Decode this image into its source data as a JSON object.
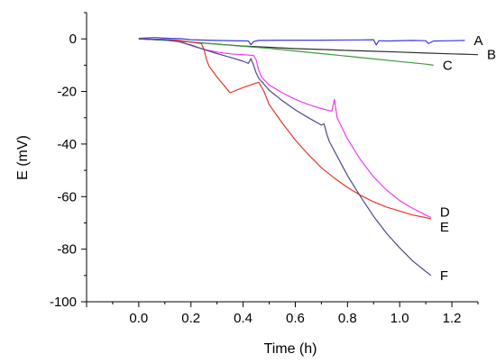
{
  "chart_data": {
    "type": "line",
    "xlabel": "Time (h)",
    "ylabel": "E (mV)",
    "xlim": [
      -0.2,
      1.3
    ],
    "ylim": [
      -100,
      10
    ],
    "xticks": [
      0.0,
      0.2,
      0.4,
      0.6,
      0.8,
      1.0,
      1.2
    ],
    "xtick_labels": [
      "0.0",
      "0.2",
      "0.4",
      "0.6",
      "0.8",
      "1.0",
      "1.2"
    ],
    "yticks": [
      0,
      -20,
      -40,
      -60,
      -80,
      -100
    ],
    "ytick_labels": [
      "0",
      "-20",
      "-40",
      "-60",
      "-80",
      "-100"
    ],
    "grid": false,
    "series": [
      {
        "name": "A",
        "color": "#3a3ae6",
        "x": [
          0.0,
          0.06,
          0.12,
          0.16,
          0.2,
          0.3,
          0.42,
          0.43,
          0.44,
          0.46,
          0.55,
          0.7,
          0.85,
          0.9,
          0.91,
          0.92,
          0.95,
          1.05,
          1.1,
          1.11,
          1.13,
          1.2,
          1.25
        ],
        "y": [
          0.2,
          0.5,
          0.2,
          0.1,
          -0.3,
          -0.6,
          -0.8,
          -2.2,
          -1.0,
          -0.6,
          -0.5,
          -0.5,
          -0.4,
          -0.3,
          -2.3,
          -0.7,
          -0.8,
          -0.6,
          -0.7,
          -1.8,
          -0.8,
          -0.7,
          -0.6
        ]
      },
      {
        "name": "B",
        "color": "#2f2f2f",
        "x": [
          0.0,
          0.1,
          0.2,
          0.3,
          0.4,
          0.5,
          0.6,
          0.7,
          0.8,
          0.9,
          1.0,
          1.1,
          1.2,
          1.3
        ],
        "y": [
          0.0,
          -0.5,
          -1.2,
          -2.0,
          -2.7,
          -3.2,
          -3.7,
          -4.0,
          -4.4,
          -4.7,
          -5.0,
          -5.4,
          -5.7,
          -6.0
        ]
      },
      {
        "name": "C",
        "color": "#3c9b3c",
        "x": [
          0.0,
          0.1,
          0.2,
          0.3,
          0.4,
          0.5,
          0.6,
          0.7,
          0.8,
          0.9,
          1.0,
          1.1,
          1.13
        ],
        "y": [
          0.0,
          -0.5,
          -1.2,
          -2.0,
          -2.8,
          -3.6,
          -4.6,
          -5.6,
          -6.6,
          -7.6,
          -8.6,
          -9.6,
          -10.0
        ]
      },
      {
        "name": "D",
        "color": "#ee3cee",
        "x": [
          0.0,
          0.1,
          0.15,
          0.2,
          0.25,
          0.3,
          0.35,
          0.4,
          0.44,
          0.45,
          0.46,
          0.47,
          0.5,
          0.55,
          0.6,
          0.65,
          0.7,
          0.73,
          0.74,
          0.75,
          0.76,
          0.8,
          0.85,
          0.9,
          0.95,
          1.0,
          1.05,
          1.1,
          1.12
        ],
        "y": [
          0.0,
          -0.2,
          -0.8,
          -2.5,
          -4.0,
          -5.0,
          -5.7,
          -6.0,
          -6.3,
          -8.0,
          -12.0,
          -14.5,
          -17.5,
          -20.5,
          -23.0,
          -25.0,
          -26.5,
          -27.3,
          -27.5,
          -23.0,
          -30.0,
          -38.0,
          -46.0,
          -52.5,
          -57.5,
          -61.5,
          -64.5,
          -67.0,
          -68.0
        ]
      },
      {
        "name": "E",
        "color": "#e8362a",
        "x": [
          0.0,
          0.1,
          0.15,
          0.2,
          0.24,
          0.25,
          0.26,
          0.27,
          0.3,
          0.35,
          0.4,
          0.45,
          0.46,
          0.48,
          0.5,
          0.55,
          0.6,
          0.65,
          0.7,
          0.75,
          0.8,
          0.85,
          0.9,
          0.95,
          1.0,
          1.05,
          1.1,
          1.12
        ],
        "y": [
          0.0,
          -0.2,
          -0.5,
          -1.2,
          -1.8,
          -4.0,
          -8.0,
          -10.5,
          -14.5,
          -20.5,
          -18.5,
          -16.8,
          -16.5,
          -20.0,
          -25.0,
          -32.0,
          -38.5,
          -44.0,
          -49.0,
          -53.0,
          -56.5,
          -59.5,
          -62.0,
          -64.0,
          -65.5,
          -67.0,
          -68.0,
          -68.5
        ]
      },
      {
        "name": "F",
        "color": "#4a4a8a",
        "x": [
          0.0,
          0.1,
          0.15,
          0.2,
          0.25,
          0.3,
          0.35,
          0.4,
          0.42,
          0.43,
          0.44,
          0.45,
          0.46,
          0.5,
          0.55,
          0.6,
          0.65,
          0.7,
          0.71,
          0.72,
          0.73,
          0.8,
          0.85,
          0.9,
          0.95,
          1.0,
          1.05,
          1.1,
          1.12
        ],
        "y": [
          0.0,
          -0.3,
          -1.0,
          -2.3,
          -4.0,
          -5.6,
          -7.0,
          -8.5,
          -9.3,
          -7.5,
          -10.0,
          -13.0,
          -15.0,
          -19.5,
          -23.5,
          -27.0,
          -30.0,
          -32.8,
          -32.3,
          -36.0,
          -39.0,
          -52.0,
          -60.0,
          -67.5,
          -74.0,
          -79.5,
          -84.5,
          -88.5,
          -90.0
        ]
      }
    ]
  }
}
